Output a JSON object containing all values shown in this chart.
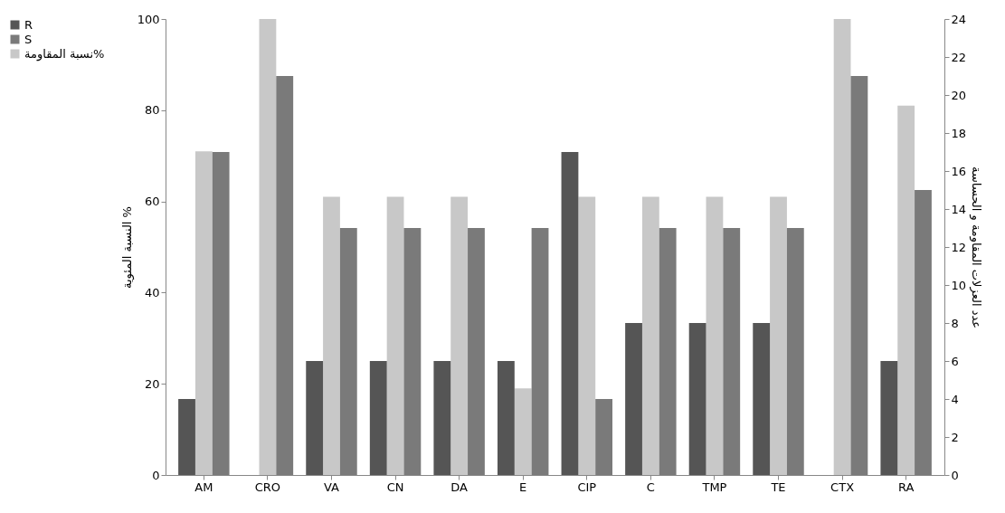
{
  "chart_data": {
    "type": "bar",
    "categories": [
      "AM",
      "CRO",
      "VA",
      "CN",
      "DA",
      "E",
      "CIP",
      "C",
      "TMP",
      "TE",
      "CTX",
      "RA"
    ],
    "ylabel": "النسبة المئوية %",
    "y2label": "عدد العزلات المقاومة و الحساسة",
    "ylim": [
      0,
      100
    ],
    "yticks": [
      0,
      20,
      40,
      60,
      80,
      100
    ],
    "y2lim": [
      0,
      24
    ],
    "y2ticks": [
      0,
      2,
      4,
      6,
      8,
      10,
      12,
      14,
      16,
      18,
      20,
      22,
      24
    ],
    "series": [
      {
        "name": "R",
        "color": "#555555",
        "axis": "y2",
        "values": [
          4,
          0,
          6,
          6,
          6,
          6,
          17,
          8,
          8,
          8,
          0,
          6
        ]
      },
      {
        "name": "S",
        "color": "#7a7a7a",
        "axis": "y2",
        "values": [
          17,
          21,
          13,
          13,
          13,
          13,
          4,
          13,
          13,
          13,
          21,
          15
        ]
      },
      {
        "name": "نسبة المقاومة%",
        "color": "#c8c8c8",
        "axis": "y",
        "values": [
          71,
          100,
          61,
          61,
          61,
          19,
          61,
          61,
          61,
          61,
          100,
          81
        ]
      }
    ],
    "legend": "left",
    "grid": false
  }
}
